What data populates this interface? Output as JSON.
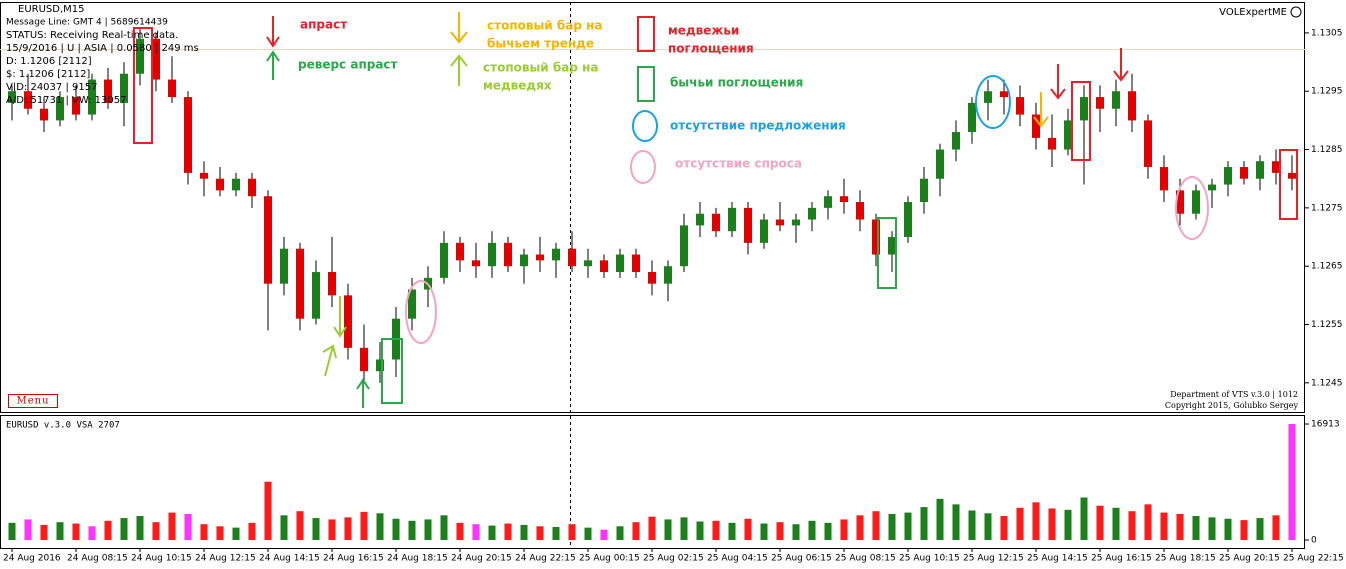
{
  "header": {
    "symbol": "EURUSD,M15",
    "lines": [
      "Message Line: GMT 4 | 5689614439",
      "STATUS:  Receiving Real-time data.",
      "15/9/2016 | U | ASIA | 0.0580 | 249 ms",
      "D: 1.1206  [2112]",
      "$: 1.1206  [2112]",
      "V|D: 24037 | 9157",
      "A/D: 51731 | VW: 13057"
    ],
    "brand": "VOLExpertME",
    "menu": "Menu",
    "footer": [
      "Department of VTS  v.3.0 | 1012",
      "Copyright 2015, Golubko Sergey"
    ],
    "indicator": "EURUSD v.3.0 VSA 2707"
  },
  "legend": [
    [
      "апраст"
    ],
    [
      "реверс апраст"
    ],
    [
      "стоповый бар на",
      "бычьем тренде"
    ],
    [
      "стоповый бар на",
      "медведях"
    ],
    [
      "медвежьи",
      "поглощения"
    ],
    [
      "бычьи поглощения"
    ],
    [
      "отсутствие  предложения"
    ],
    [
      "отсутствие спроса"
    ]
  ],
  "chart_data": [
    {
      "type": "candlestick",
      "up_color": "#1b7f1b",
      "down_color": "#e00000",
      "ylim": [
        1.124,
        1.13103
      ],
      "yticks": [
        1.1245,
        1.1255,
        1.1265,
        1.1275,
        1.1285,
        1.1295,
        1.1305
      ],
      "ohlc": [
        [
          1.1293,
          1.1296,
          1.129,
          1.1295
        ],
        [
          1.1295,
          1.1298,
          1.1291,
          1.1292
        ],
        [
          1.1292,
          1.1294,
          1.1288,
          1.129
        ],
        [
          1.129,
          1.1295,
          1.1289,
          1.1294
        ],
        [
          1.1294,
          1.1296,
          1.129,
          1.1291
        ],
        [
          1.1291,
          1.1298,
          1.129,
          1.1297
        ],
        [
          1.1297,
          1.1299,
          1.1292,
          1.1293
        ],
        [
          1.1293,
          1.13,
          1.1289,
          1.1298
        ],
        [
          1.1298,
          1.1306,
          1.1296,
          1.1304
        ],
        [
          1.1304,
          1.1305,
          1.1295,
          1.1297
        ],
        [
          1.1297,
          1.1301,
          1.1293,
          1.1294
        ],
        [
          1.1294,
          1.1295,
          1.1279,
          1.1281
        ],
        [
          1.1281,
          1.1283,
          1.1277,
          1.128
        ],
        [
          1.128,
          1.1282,
          1.1277,
          1.1278
        ],
        [
          1.1278,
          1.1281,
          1.1277,
          1.128
        ],
        [
          1.128,
          1.1281,
          1.1275,
          1.1277
        ],
        [
          1.1277,
          1.1278,
          1.1254,
          1.1262
        ],
        [
          1.1262,
          1.127,
          1.126,
          1.1268
        ],
        [
          1.1268,
          1.1269,
          1.1254,
          1.1256
        ],
        [
          1.1256,
          1.1266,
          1.1255,
          1.1264
        ],
        [
          1.1264,
          1.127,
          1.1258,
          1.126
        ],
        [
          1.126,
          1.1262,
          1.1249,
          1.1251
        ],
        [
          1.1251,
          1.1255,
          1.1245,
          1.1247
        ],
        [
          1.1247,
          1.1252,
          1.1245,
          1.1249
        ],
        [
          1.1249,
          1.1258,
          1.1246,
          1.1256
        ],
        [
          1.1256,
          1.1263,
          1.1254,
          1.1261
        ],
        [
          1.1261,
          1.1265,
          1.1258,
          1.1263
        ],
        [
          1.1263,
          1.1271,
          1.1262,
          1.1269
        ],
        [
          1.1269,
          1.127,
          1.1264,
          1.1266
        ],
        [
          1.1266,
          1.1269,
          1.1263,
          1.1265
        ],
        [
          1.1265,
          1.1271,
          1.1263,
          1.1269
        ],
        [
          1.1269,
          1.127,
          1.1264,
          1.1265
        ],
        [
          1.1265,
          1.1268,
          1.1262,
          1.1267
        ],
        [
          1.1267,
          1.127,
          1.1264,
          1.1266
        ],
        [
          1.1266,
          1.1269,
          1.1263,
          1.1268
        ],
        [
          1.1268,
          1.1271,
          1.1264,
          1.1265
        ],
        [
          1.1265,
          1.1268,
          1.1263,
          1.1266
        ],
        [
          1.1266,
          1.1267,
          1.1263,
          1.1264
        ],
        [
          1.1264,
          1.1268,
          1.1263,
          1.1267
        ],
        [
          1.1267,
          1.1268,
          1.1263,
          1.1264
        ],
        [
          1.1264,
          1.1266,
          1.126,
          1.1262
        ],
        [
          1.1262,
          1.1266,
          1.1259,
          1.1265
        ],
        [
          1.1265,
          1.1274,
          1.1264,
          1.1272
        ],
        [
          1.1272,
          1.1276,
          1.127,
          1.1274
        ],
        [
          1.1274,
          1.1275,
          1.127,
          1.1271
        ],
        [
          1.1271,
          1.1276,
          1.127,
          1.1275
        ],
        [
          1.1275,
          1.1276,
          1.1267,
          1.1269
        ],
        [
          1.1269,
          1.1274,
          1.1268,
          1.1273
        ],
        [
          1.1273,
          1.1276,
          1.1271,
          1.1272
        ],
        [
          1.1272,
          1.1274,
          1.1269,
          1.1273
        ],
        [
          1.1273,
          1.1276,
          1.1271,
          1.1275
        ],
        [
          1.1275,
          1.1278,
          1.1273,
          1.1277
        ],
        [
          1.1277,
          1.128,
          1.1274,
          1.1276
        ],
        [
          1.1276,
          1.1278,
          1.1271,
          1.1273
        ],
        [
          1.1273,
          1.1274,
          1.1265,
          1.1267
        ],
        [
          1.1267,
          1.1271,
          1.1264,
          1.127
        ],
        [
          1.127,
          1.1277,
          1.1269,
          1.1276
        ],
        [
          1.1276,
          1.1282,
          1.1274,
          1.128
        ],
        [
          1.128,
          1.1286,
          1.1277,
          1.1285
        ],
        [
          1.1285,
          1.129,
          1.1283,
          1.1288
        ],
        [
          1.1288,
          1.1294,
          1.1286,
          1.1293
        ],
        [
          1.1293,
          1.1297,
          1.129,
          1.1295
        ],
        [
          1.1295,
          1.1297,
          1.1291,
          1.1294
        ],
        [
          1.1294,
          1.1296,
          1.1289,
          1.1291
        ],
        [
          1.1291,
          1.1293,
          1.1285,
          1.1287
        ],
        [
          1.1287,
          1.1291,
          1.1282,
          1.1285
        ],
        [
          1.1285,
          1.1292,
          1.1284,
          1.129
        ],
        [
          1.129,
          1.1296,
          1.1279,
          1.1294
        ],
        [
          1.1294,
          1.1296,
          1.1288,
          1.1292
        ],
        [
          1.1292,
          1.1297,
          1.1289,
          1.1295
        ],
        [
          1.1295,
          1.1298,
          1.1288,
          1.129
        ],
        [
          1.129,
          1.1291,
          1.128,
          1.1282
        ],
        [
          1.1282,
          1.1284,
          1.1276,
          1.1278
        ],
        [
          1.1278,
          1.128,
          1.1272,
          1.1274
        ],
        [
          1.1274,
          1.1279,
          1.1273,
          1.1278
        ],
        [
          1.1278,
          1.128,
          1.1275,
          1.1279
        ],
        [
          1.1279,
          1.1283,
          1.1277,
          1.1282
        ],
        [
          1.1282,
          1.1283,
          1.1279,
          1.128
        ],
        [
          1.128,
          1.1284,
          1.1278,
          1.1283
        ],
        [
          1.1283,
          1.1285,
          1.1279,
          1.1281
        ],
        [
          1.1281,
          1.1284,
          1.1278,
          1.128
        ]
      ]
    },
    {
      "type": "bar",
      "ylim": [
        0,
        17500
      ],
      "yticks": [
        0,
        16913
      ],
      "categories": [
        "24 Aug 2016",
        null,
        null,
        null,
        "24 Aug 08:15",
        null,
        null,
        null,
        "24 Aug 10:15",
        null,
        null,
        null,
        "24 Aug 12:15",
        null,
        null,
        null,
        "24 Aug 14:15",
        null,
        null,
        null,
        "24 Aug 16:15",
        null,
        null,
        null,
        "24 Aug 18:15",
        null,
        null,
        null,
        "24 Aug 20:15",
        null,
        null,
        null,
        "24 Aug 22:15",
        null,
        null,
        null,
        "25 Aug 00:15",
        null,
        null,
        null,
        "25 Aug 02:15",
        null,
        null,
        null,
        "25 Aug 04:15",
        null,
        null,
        null,
        "25 Aug 06:15",
        null,
        null,
        null,
        "25 Aug 08:15",
        null,
        null,
        null,
        "25 Aug 10:15",
        null,
        null,
        null,
        "25 Aug 12:15",
        null,
        null,
        null,
        "25 Aug 14:15",
        null,
        null,
        null,
        "25 Aug 16:15",
        null,
        null,
        null,
        "25 Aug 18:15",
        null,
        null,
        null,
        "25 Aug 20:15",
        null,
        null,
        null,
        "25 Aug 22:15"
      ],
      "values": [
        2500,
        3000,
        2200,
        2600,
        2400,
        2000,
        2800,
        3200,
        3500,
        2600,
        4000,
        3800,
        2300,
        2000,
        1800,
        2500,
        8500,
        3600,
        4200,
        3200,
        3000,
        3300,
        4100,
        3900,
        3100,
        2800,
        3000,
        3600,
        2500,
        2300,
        2100,
        2400,
        2200,
        2000,
        1900,
        2300,
        1800,
        1500,
        2000,
        2600,
        3400,
        3000,
        3300,
        2700,
        2800,
        2500,
        3100,
        2400,
        2600,
        2300,
        2800,
        2500,
        3000,
        3600,
        4200,
        3800,
        4000,
        4800,
        6000,
        5200,
        4300,
        3900,
        3500,
        4700,
        5500,
        4600,
        4400,
        6200,
        5000,
        4700,
        4200,
        5200,
        4000,
        3800,
        3500,
        3300,
        3100,
        2900,
        3200,
        3600,
        16913
      ],
      "colors": [
        "#1b7f1b",
        "#ff33ff",
        "#ff1a1a",
        "#1b7f1b",
        "#ff1a1a",
        "#ff33ff",
        "#ff1a1a",
        "#1b7f1b",
        "#1b7f1b",
        "#ff1a1a",
        "#ff1a1a",
        "#ff33ff",
        "#ff1a1a",
        "#ff1a1a",
        "#1b7f1b",
        "#ff1a1a",
        "#ff1a1a",
        "#1b7f1b",
        "#ff1a1a",
        "#1b7f1b",
        "#ff1a1a",
        "#ff1a1a",
        "#ff1a1a",
        "#1b7f1b",
        "#1b7f1b",
        "#1b7f1b",
        "#1b7f1b",
        "#1b7f1b",
        "#ff1a1a",
        "#ff33ff",
        "#1b7f1b",
        "#ff1a1a",
        "#1b7f1b",
        "#ff1a1a",
        "#1b7f1b",
        "#ff1a1a",
        "#1b7f1b",
        "#ff33ff",
        "#1b7f1b",
        "#ff1a1a",
        "#ff1a1a",
        "#1b7f1b",
        "#1b7f1b",
        "#1b7f1b",
        "#ff1a1a",
        "#1b7f1b",
        "#ff1a1a",
        "#1b7f1b",
        "#ff1a1a",
        "#1b7f1b",
        "#1b7f1b",
        "#1b7f1b",
        "#ff1a1a",
        "#ff1a1a",
        "#ff1a1a",
        "#1b7f1b",
        "#1b7f1b",
        "#1b7f1b",
        "#1b7f1b",
        "#1b7f1b",
        "#1b7f1b",
        "#1b7f1b",
        "#ff1a1a",
        "#ff1a1a",
        "#ff1a1a",
        "#ff1a1a",
        "#1b7f1b",
        "#1b7f1b",
        "#ff1a1a",
        "#1b7f1b",
        "#ff1a1a",
        "#ff1a1a",
        "#ff1a1a",
        "#ff1a1a",
        "#1b7f1b",
        "#1b7f1b",
        "#1b7f1b",
        "#ff1a1a",
        "#1b7f1b",
        "#ff1a1a",
        "#ff33ff"
      ]
    }
  ]
}
